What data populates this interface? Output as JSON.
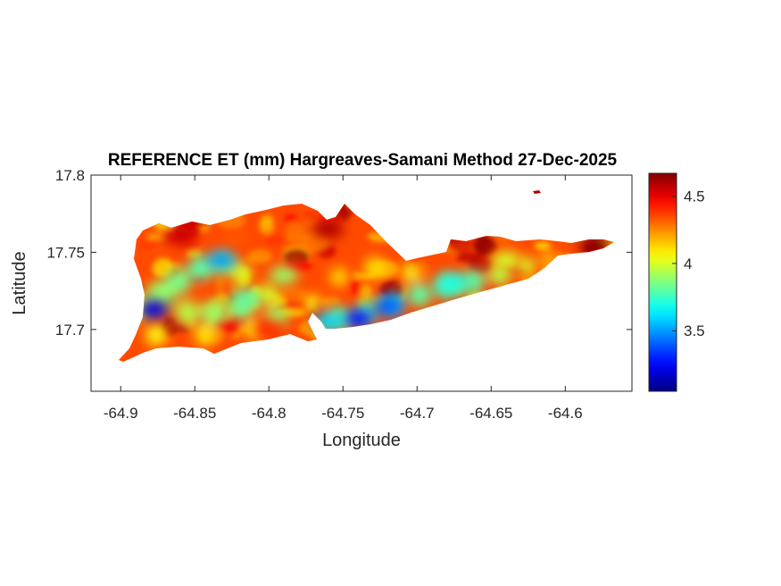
{
  "chart_data": {
    "type": "heatmap",
    "title": "REFERENCE ET (mm) Hargreaves-Samani Method  27-Dec-2025",
    "xlabel": "Longitude",
    "ylabel": "Latitude",
    "xlim": [
      -64.92,
      -64.555
    ],
    "ylim": [
      17.66,
      17.8
    ],
    "xticks": [
      -64.9,
      -64.85,
      -64.8,
      -64.75,
      -64.7,
      -64.65,
      -64.6
    ],
    "xtick_labels": [
      "-64.9",
      "-64.85",
      "-64.8",
      "-64.75",
      "-64.7",
      "-64.65",
      "-64.6"
    ],
    "yticks": [
      17.7,
      17.75,
      17.8
    ],
    "ytick_labels": [
      "17.7",
      "17.75",
      "17.8"
    ],
    "colorbar": {
      "colormap": "jet",
      "range": [
        3.05,
        4.67
      ],
      "ticks": [
        3.5,
        4,
        4.5
      ],
      "tick_labels": [
        "3.5",
        "4",
        "4.5"
      ]
    },
    "grid": false,
    "cool_spots": [
      {
        "lon": -64.832,
        "lat": 17.745,
        "value": 3.5
      },
      {
        "lon": -64.878,
        "lat": 17.713,
        "value": 3.2
      },
      {
        "lon": -64.72,
        "lat": 17.715,
        "value": 3.4
      },
      {
        "lon": -64.74,
        "lat": 17.707,
        "value": 3.3
      },
      {
        "lon": -64.675,
        "lat": 17.73,
        "value": 3.7
      },
      {
        "lon": -64.815,
        "lat": 17.72,
        "value": 3.8
      },
      {
        "lon": -64.79,
        "lat": 17.735,
        "value": 3.9
      },
      {
        "lon": -64.76,
        "lat": 17.705,
        "value": 3.6
      },
      {
        "lon": -64.64,
        "lat": 17.745,
        "value": 4.0
      }
    ],
    "warm_spots": [
      {
        "lon": -64.86,
        "lat": 17.76,
        "value": 4.55
      },
      {
        "lon": -64.76,
        "lat": 17.765,
        "value": 4.6
      },
      {
        "lon": -64.58,
        "lat": 17.754,
        "value": 4.67
      },
      {
        "lon": -64.8,
        "lat": 17.7,
        "value": 4.4
      }
    ],
    "background_value": 4.35
  },
  "colors": {
    "jet": [
      "#00008f",
      "#0000ff",
      "#00ffff",
      "#ffff00",
      "#ff0000",
      "#800000"
    ],
    "axis": "#262626"
  }
}
